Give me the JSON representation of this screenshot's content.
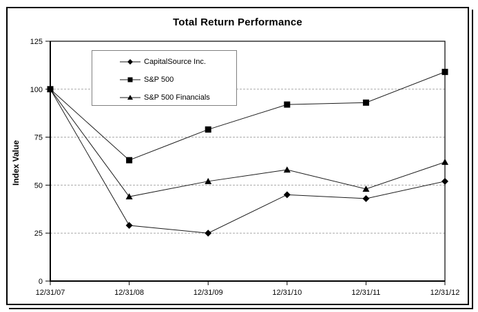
{
  "chart_data": {
    "type": "line",
    "title": "Total Return Performance",
    "xlabel": "",
    "ylabel": "Index Value",
    "categories": [
      "12/31/07",
      "12/31/08",
      "12/31/09",
      "12/31/10",
      "12/31/11",
      "12/31/12"
    ],
    "series": [
      {
        "name": "CapitalSource Inc.",
        "marker": "diamond",
        "values": [
          100,
          29,
          25,
          45,
          43,
          52
        ]
      },
      {
        "name": "S&P 500",
        "marker": "square",
        "values": [
          100,
          63,
          79,
          92,
          93,
          109
        ]
      },
      {
        "name": "S&P 500 Financials",
        "marker": "triangle",
        "values": [
          100,
          44,
          52,
          58,
          48,
          62
        ]
      }
    ],
    "ylim": [
      0,
      125
    ],
    "y_ticks": [
      0,
      25,
      50,
      75,
      100,
      125
    ],
    "grid": "horizontal-dashed",
    "legend_position": "inside-upper-left",
    "colors": {
      "line": "#1a1a1a",
      "marker": "#000000",
      "grid": "#a8a8a8",
      "axis": "#000000",
      "legend_border": "#808080",
      "background": "#ffffff"
    }
  }
}
